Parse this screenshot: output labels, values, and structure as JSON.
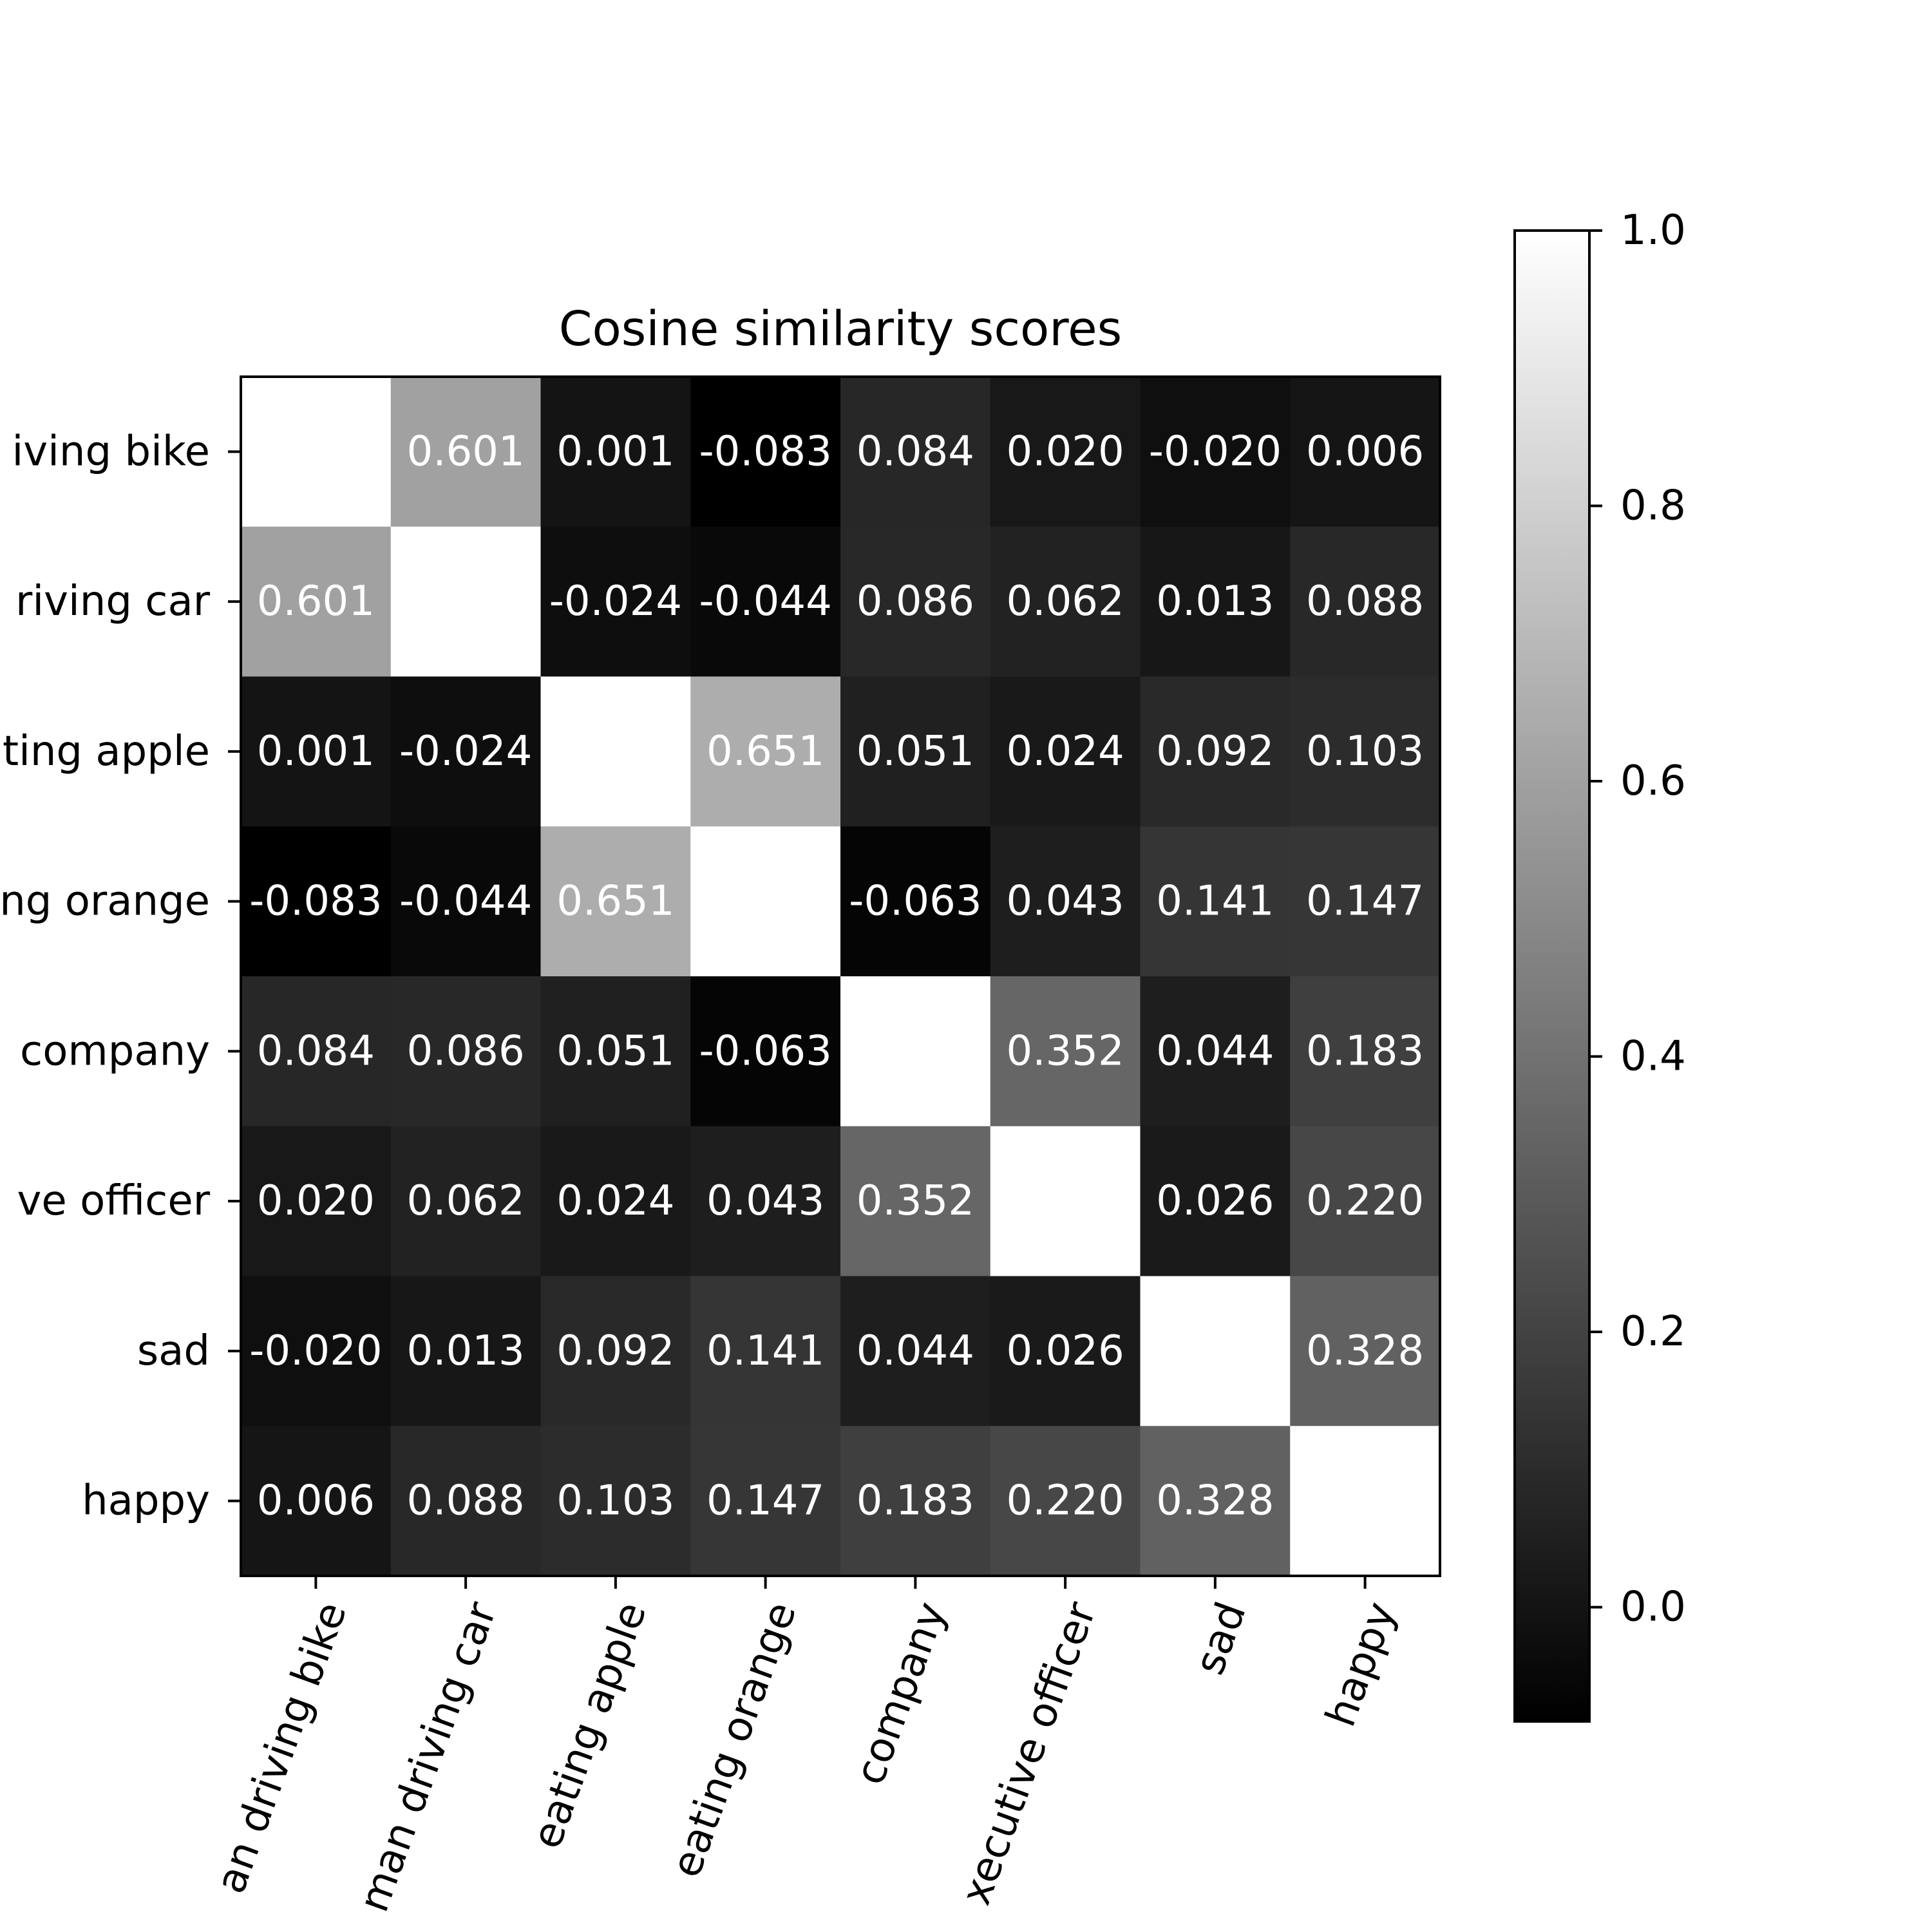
{
  "chart_data": {
    "type": "heatmap",
    "title": "Cosine similarity scores",
    "row_labels": [
      "iving bike",
      "riving car",
      "ting apple",
      "ng orange",
      "company",
      "ve officer",
      "sad",
      "happy"
    ],
    "col_labels": [
      "an driving bike",
      "man driving car",
      "eating apple",
      "eating orange",
      "company",
      "xecutive officer",
      "sad",
      "happy"
    ],
    "cell_labels": [
      [
        "",
        "0.601",
        "0.001",
        "-0.083",
        "0.084",
        "0.020",
        "-0.020",
        "0.006"
      ],
      [
        "0.601",
        "",
        "-0.024",
        "-0.044",
        "0.086",
        "0.062",
        "0.013",
        "0.088"
      ],
      [
        "0.001",
        "-0.024",
        "",
        "0.651",
        "0.051",
        "0.024",
        "0.092",
        "0.103"
      ],
      [
        "-0.083",
        "-0.044",
        "0.651",
        "",
        "-0.063",
        "0.043",
        "0.141",
        "0.147"
      ],
      [
        "0.084",
        "0.086",
        "0.051",
        "-0.063",
        "",
        "0.352",
        "0.044",
        "0.183"
      ],
      [
        "0.020",
        "0.062",
        "0.024",
        "0.043",
        "0.352",
        "",
        "0.026",
        "0.220"
      ],
      [
        "-0.020",
        "0.013",
        "0.092",
        "0.141",
        "0.044",
        "0.026",
        "",
        "0.328"
      ],
      [
        "0.006",
        "0.088",
        "0.103",
        "0.147",
        "0.183",
        "0.220",
        "0.328",
        ""
      ]
    ],
    "values": [
      [
        1.0,
        0.601,
        0.001,
        -0.083,
        0.084,
        0.02,
        -0.02,
        0.006
      ],
      [
        0.601,
        1.0,
        -0.024,
        -0.044,
        0.086,
        0.062,
        0.013,
        0.088
      ],
      [
        0.001,
        -0.024,
        1.0,
        0.651,
        0.051,
        0.024,
        0.092,
        0.103
      ],
      [
        -0.083,
        -0.044,
        0.651,
        1.0,
        -0.063,
        0.043,
        0.141,
        0.147
      ],
      [
        0.084,
        0.086,
        0.051,
        -0.063,
        1.0,
        0.352,
        0.044,
        0.183
      ],
      [
        0.02,
        0.062,
        0.024,
        0.043,
        0.352,
        1.0,
        0.026,
        0.22
      ],
      [
        -0.02,
        0.013,
        0.092,
        0.141,
        0.044,
        0.026,
        1.0,
        0.328
      ],
      [
        0.006,
        0.088,
        0.103,
        0.147,
        0.183,
        0.22,
        0.328,
        1.0
      ]
    ],
    "color_scale": {
      "name": "gray",
      "min": -0.083,
      "max": 1.0,
      "low_color": "#000000",
      "high_color": "#ffffff"
    },
    "colorbar_ticks": [
      "0.0",
      "0.2",
      "0.4",
      "0.6",
      "0.8",
      "1.0"
    ],
    "colorbar_tick_values": [
      0.0,
      0.2,
      0.4,
      0.6,
      0.8,
      1.0
    ],
    "cell_text_color": "#ffffff"
  }
}
